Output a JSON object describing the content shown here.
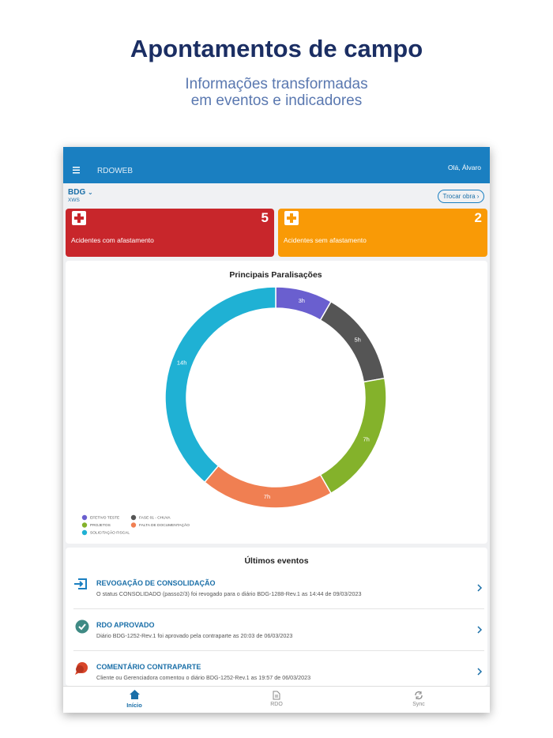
{
  "header": {
    "title": "Apontamentos de campo",
    "subtitle_lines": [
      "Informações transformadas",
      "em eventos e indicadores"
    ]
  },
  "app_bar": {
    "title": "RDOWEB",
    "greeting": "Olá, Álvaro"
  },
  "project": {
    "code": "BDG",
    "sub": "XWS",
    "button": "Trocar obra"
  },
  "cards": [
    {
      "count": 5,
      "label": "Acidentes com afastamento"
    },
    {
      "count": 2,
      "label": "Acidentes sem afastamento"
    }
  ],
  "chart_data": {
    "type": "donut",
    "title": "Principais Paralisações",
    "categories": [
      "EFETIVO TESTE",
      "FASE 01 - CHUVA",
      "PROJETOS",
      "FALTA DE DOCUMENTAÇÃO",
      "SOLICITAÇÃO FISCAL"
    ],
    "values": [
      3,
      5,
      7,
      7,
      14
    ],
    "value_labels": [
      "3h",
      "5h",
      "7h",
      "7h",
      "14h"
    ],
    "colors": [
      "#6a5fcf",
      "#555555",
      "#84b22b",
      "#f07f52",
      "#1fb1d4"
    ]
  },
  "events": {
    "title": "Últimos eventos",
    "items": [
      {
        "title": "REVOGAÇÃO DE CONSOLIDAÇÃO",
        "description": "O status CONSOLIDADO (passo2/3) foi revogado para o diário BDG-1288-Rev.1 as 14:44 de 09/03/2023"
      },
      {
        "title": "RDO APROVADO",
        "description": "Diário BDG-1252-Rev.1 foi aprovado pela contraparte as 20:03 de 06/03/2023"
      },
      {
        "title": "COMENTÁRIO CONTRAPARTE",
        "description": "Cliente ou Gerenciadora comentou o diário BDG-1252-Rev.1 as 19:57 de 06/03/2023"
      }
    ]
  },
  "nav": [
    "Início",
    "RDO",
    "Sync"
  ]
}
